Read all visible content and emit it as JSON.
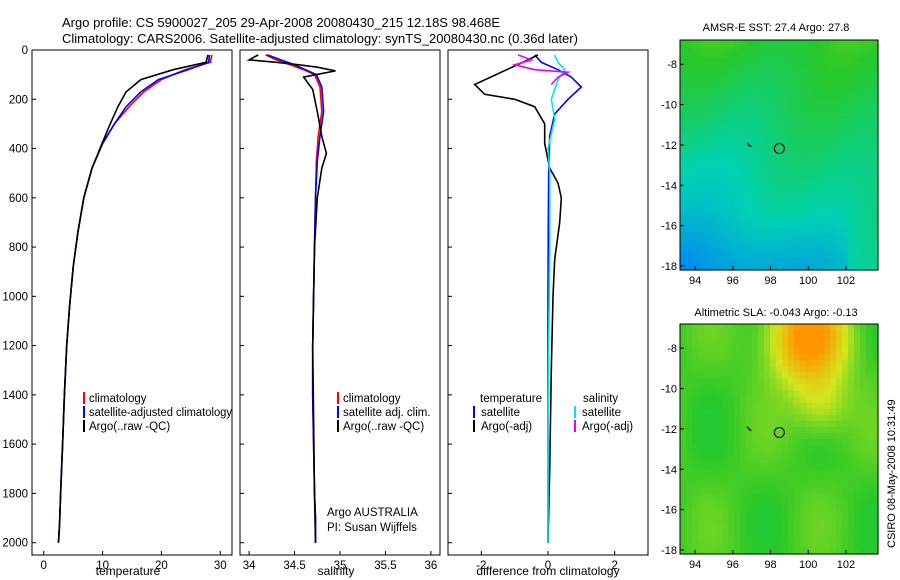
{
  "title_line1": "Argo profile: CS 5900027_205 29-Apr-2008 20080430_215 12.18S 98.468E",
  "title_line2": "Climatology: CARS2006. Satellite-adjusted climatology: synTS_20080430.nc (0.36d later)",
  "side_stamp": "CSIRO 08-May-2008 10:31:49",
  "colors": {
    "climatology": "#ff0000",
    "satellite": "#0000ff",
    "argo": "#000000",
    "salinity_satellite": "#00e5ee",
    "salinity_argo": "#ee00ee"
  },
  "chart_data": [
    {
      "id": "temperature",
      "type": "line",
      "xlabel": "temperature",
      "ylabel": "",
      "xlim": [
        -2,
        32
      ],
      "ylim": [
        2050,
        0
      ],
      "xticks": [
        0,
        10,
        20,
        30
      ],
      "yticks": [
        0,
        200,
        400,
        600,
        800,
        1000,
        1200,
        1400,
        1600,
        1800,
        2000
      ],
      "legend": [
        "climatology",
        "satellite-adjusted climatology",
        "Argo(..raw -QC)"
      ],
      "series": [
        {
          "name": "climatology",
          "color": "#ff0000",
          "x": [
            28.6,
            28.3,
            24,
            20,
            17,
            14.5,
            12,
            10,
            8.2,
            6.8,
            5.8,
            5.0,
            4.4,
            3.9,
            3.5,
            3.2,
            2.9,
            2.7,
            2.5
          ],
          "y": [
            20,
            50,
            80,
            120,
            170,
            230,
            300,
            380,
            480,
            600,
            740,
            880,
            1040,
            1200,
            1400,
            1600,
            1780,
            1920,
            2000
          ]
        },
        {
          "name": "satellite-adjusted climatology",
          "color": "#0000ff",
          "x": [
            28.2,
            28.0,
            24.5,
            19.5,
            16.5,
            14.0,
            12,
            10,
            8.2,
            6.8,
            5.8,
            5.0,
            4.4,
            3.9,
            3.5,
            3.2,
            2.9,
            2.7,
            2.5
          ],
          "y": [
            20,
            50,
            80,
            120,
            170,
            230,
            300,
            380,
            480,
            600,
            740,
            880,
            1040,
            1200,
            1400,
            1600,
            1780,
            1920,
            2000
          ]
        },
        {
          "name": "Argo(..raw -QC)",
          "color": "#000000",
          "x": [
            27.9,
            27.6,
            22,
            16.5,
            14,
            12.6,
            11.3,
            9.9,
            8.2,
            6.8,
            5.8,
            5.0,
            4.4,
            3.9,
            3.5,
            3.2,
            2.9,
            2.7,
            2.5
          ],
          "y": [
            20,
            50,
            80,
            120,
            170,
            230,
            300,
            380,
            480,
            600,
            740,
            880,
            1040,
            1200,
            1400,
            1600,
            1780,
            1920,
            2000
          ]
        }
      ]
    },
    {
      "id": "salinity",
      "type": "line",
      "xlabel": "salinity",
      "xlim": [
        33.9,
        36.1
      ],
      "ylim": [
        2050,
        0
      ],
      "xticks": [
        34,
        34.5,
        35,
        35.5,
        36
      ],
      "legend": [
        "climatology",
        "satellite adj. clim.",
        "Argo(..raw -QC)"
      ],
      "annotations": [
        "Argo AUSTRALIA",
        "PI: Susan Wijffels"
      ],
      "series": [
        {
          "name": "climatology",
          "color": "#ff0000",
          "x": [
            34.18,
            34.3,
            34.45,
            34.6,
            34.72,
            34.78,
            34.8,
            34.76,
            34.74,
            34.73,
            34.72,
            34.71,
            34.7,
            34.7,
            34.71,
            34.72,
            34.73,
            34.73
          ],
          "y": [
            20,
            40,
            60,
            80,
            100,
            150,
            250,
            350,
            450,
            600,
            800,
            1000,
            1200,
            1400,
            1600,
            1800,
            1900,
            2000
          ]
        },
        {
          "name": "satellite adj. clim.",
          "color": "#0000ff",
          "x": [
            34.2,
            34.35,
            34.5,
            34.62,
            34.74,
            34.8,
            34.82,
            34.78,
            34.75,
            34.73,
            34.72,
            34.71,
            34.7,
            34.7,
            34.71,
            34.72,
            34.73,
            34.73
          ],
          "y": [
            20,
            40,
            60,
            80,
            100,
            150,
            250,
            350,
            450,
            600,
            800,
            1000,
            1200,
            1400,
            1600,
            1800,
            1900,
            2000
          ]
        },
        {
          "name": "Argo(..raw -QC)",
          "color": "#000000",
          "x": [
            34.1,
            34.0,
            34.3,
            34.55,
            34.75,
            34.95,
            34.6,
            34.7,
            34.75,
            34.8,
            34.85,
            34.8,
            34.75,
            34.72,
            34.71,
            34.7,
            34.71,
            34.72,
            34.73
          ],
          "y": [
            20,
            40,
            50,
            60,
            70,
            85,
            110,
            160,
            250,
            350,
            420,
            480,
            600,
            800,
            1000,
            1200,
            1500,
            1800,
            2000
          ]
        }
      ]
    },
    {
      "id": "difference",
      "type": "line",
      "xlabel": "difference from climatology",
      "xlim": [
        -3,
        3
      ],
      "ylim": [
        2050,
        0
      ],
      "xticks": [
        -2,
        0,
        2
      ],
      "legend_temperature": [
        "temperature",
        "satellite",
        "Argo(-adj)"
      ],
      "legend_salinity": [
        "salinity",
        "satellite",
        "Argo(-adj)"
      ],
      "series": [
        {
          "name": "temperature satellite",
          "color": "#0000ff",
          "x": [
            -0.4,
            -0.2,
            0.3,
            0.7,
            1.0,
            0.6,
            0.2,
            0.05,
            0.02,
            0.01,
            0.0,
            0.0,
            0.0
          ],
          "y": [
            20,
            50,
            80,
            110,
            150,
            200,
            260,
            350,
            500,
            700,
            1000,
            1500,
            2000
          ]
        },
        {
          "name": "temperature Argo(-adj)",
          "color": "#000000",
          "x": [
            -0.3,
            -0.6,
            -2.2,
            -1.9,
            -1.0,
            -0.4,
            -0.1,
            -0.1,
            0.05,
            0.3,
            0.4,
            0.35,
            0.2,
            0.15,
            0.1,
            0.05,
            0.0
          ],
          "y": [
            20,
            40,
            140,
            180,
            200,
            230,
            300,
            380,
            480,
            540,
            600,
            700,
            850,
            1000,
            1300,
            1700,
            2000
          ]
        },
        {
          "name": "salinity satellite",
          "color": "#00e5ee",
          "x": [
            0.2,
            0.3,
            0.5,
            0.3,
            0.1,
            0.2,
            0.0,
            0.05,
            0.05,
            0.02,
            0.0,
            0.0
          ],
          "y": [
            20,
            50,
            80,
            120,
            200,
            280,
            400,
            500,
            800,
            1200,
            1600,
            2000
          ]
        },
        {
          "name": "salinity Argo(-adj)",
          "color": "#ee00ee",
          "x": [
            -0.9,
            -0.5,
            -1.0,
            -0.4,
            0.6,
            0.3,
            0.1
          ],
          "y": [
            20,
            40,
            60,
            80,
            90,
            110,
            140
          ]
        }
      ]
    },
    {
      "id": "amsre_map",
      "type": "heatmap",
      "title": "AMSR-E SST: 27.4 Argo: 27.8",
      "xticks": [
        94,
        96,
        98,
        100,
        102
      ],
      "yticks": [
        -8,
        -10,
        -12,
        -14,
        -16,
        -18
      ],
      "marker": {
        "lon": 98.468,
        "lat": -12.18
      }
    },
    {
      "id": "sla_map",
      "type": "heatmap",
      "title": "Altimetric SLA: -0.043 Argo: -0.13",
      "xticks": [
        94,
        96,
        98,
        100,
        102
      ],
      "yticks": [
        -8,
        -10,
        -12,
        -14,
        -16,
        -18
      ],
      "marker": {
        "lon": 98.468,
        "lat": -12.18
      }
    }
  ]
}
